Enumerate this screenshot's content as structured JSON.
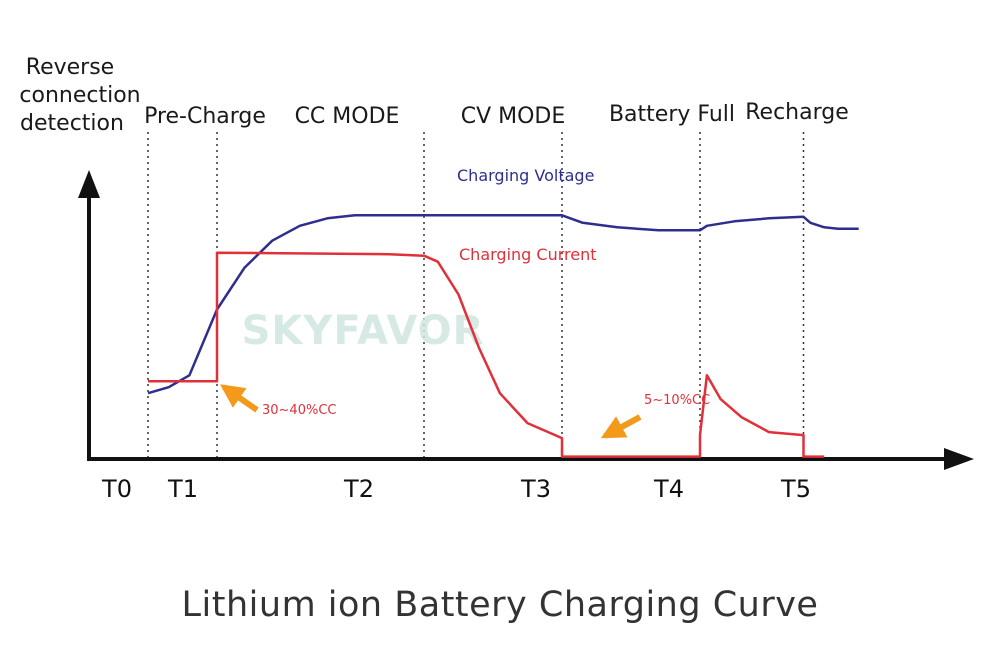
{
  "chart_data": {
    "type": "line",
    "title": "Lithium ion Battery Charging Curve",
    "ylabel": [
      "Reverse",
      "connection",
      "detection"
    ],
    "watermark": "SKYFAVOR",
    "phases": [
      "Pre-Charge",
      "CC MODE",
      "CV MODE",
      "Battery Full",
      "Recharge"
    ],
    "time_labels": [
      "T0",
      "T1",
      "T2",
      "T3",
      "T4",
      "T5"
    ],
    "phase_boundaries": [
      1,
      2,
      5,
      7,
      9,
      10.5
    ],
    "xlim": [
      0,
      12.6
    ],
    "ylim": [
      0,
      100
    ],
    "series": [
      {
        "name": "Charging Voltage",
        "color": "#2e2e8f",
        "x": [
          1,
          1.3,
          1.6,
          2.0,
          2.4,
          2.8,
          3.2,
          3.6,
          4.0,
          4.5,
          5.0,
          6.0,
          7.0,
          7.3,
          7.8,
          8.4,
          9.0,
          9.1,
          9.5,
          10.0,
          10.5,
          10.6,
          10.8,
          11.0,
          11.3
        ],
        "values": [
          22,
          24,
          28,
          50,
          64,
          73,
          78,
          80.5,
          81.5,
          81.5,
          81.5,
          81.5,
          81.5,
          79,
          77.5,
          76.5,
          76.5,
          78,
          79.5,
          80.5,
          81,
          79,
          77.5,
          77,
          77
        ]
      },
      {
        "name": "Charging Current",
        "color": "#e0303a",
        "x": [
          1,
          2.0,
          2.0,
          4.5,
          5.0,
          5.2,
          5.5,
          5.8,
          6.1,
          6.5,
          7.0,
          7.0,
          9.0,
          9.0,
          9.1,
          9.3,
          9.6,
          10.0,
          10.5,
          10.5,
          10.8
        ],
        "values": [
          26,
          26,
          69,
          68.5,
          68,
          66,
          55,
          37,
          22,
          12,
          7,
          0.8,
          0.8,
          8,
          28,
          20,
          14,
          9,
          8,
          0.8,
          0.8
        ]
      }
    ],
    "annotations": [
      {
        "text": "30~40%CC",
        "x": 2.0,
        "y": 26
      },
      {
        "text": "5~10%CC",
        "x": 7.0,
        "y": 7
      }
    ]
  }
}
